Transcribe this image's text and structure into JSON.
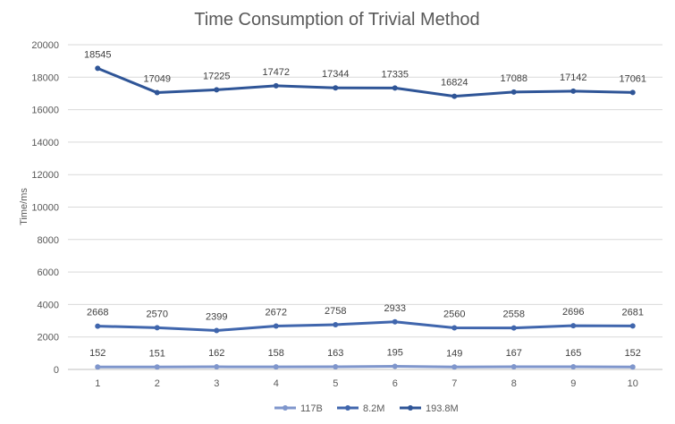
{
  "chart_data": {
    "type": "line",
    "title": "Time Consumption of Trivial Method",
    "xlabel": "",
    "ylabel": "Time/ms",
    "categories": [
      "1",
      "2",
      "3",
      "4",
      "5",
      "6",
      "7",
      "8",
      "9",
      "10"
    ],
    "ylim": [
      0,
      20000
    ],
    "yticks": [
      "0",
      "2000",
      "4000",
      "6000",
      "8000",
      "10000",
      "12000",
      "14000",
      "16000",
      "18000",
      "20000"
    ],
    "grid": true,
    "legend_position": "bottom",
    "series": [
      {
        "name": "117B",
        "color": "#7f96cc",
        "values": [
          152,
          151,
          162,
          158,
          163,
          195,
          149,
          167,
          165,
          152
        ]
      },
      {
        "name": "8.2M",
        "color": "#4066ad",
        "values": [
          2668,
          2570,
          2399,
          2672,
          2758,
          2933,
          2560,
          2558,
          2696,
          2681
        ]
      },
      {
        "name": "193.8M",
        "color": "#2f5597",
        "values": [
          18545,
          17049,
          17225,
          17472,
          17344,
          17335,
          16824,
          17088,
          17142,
          17061
        ]
      }
    ]
  }
}
